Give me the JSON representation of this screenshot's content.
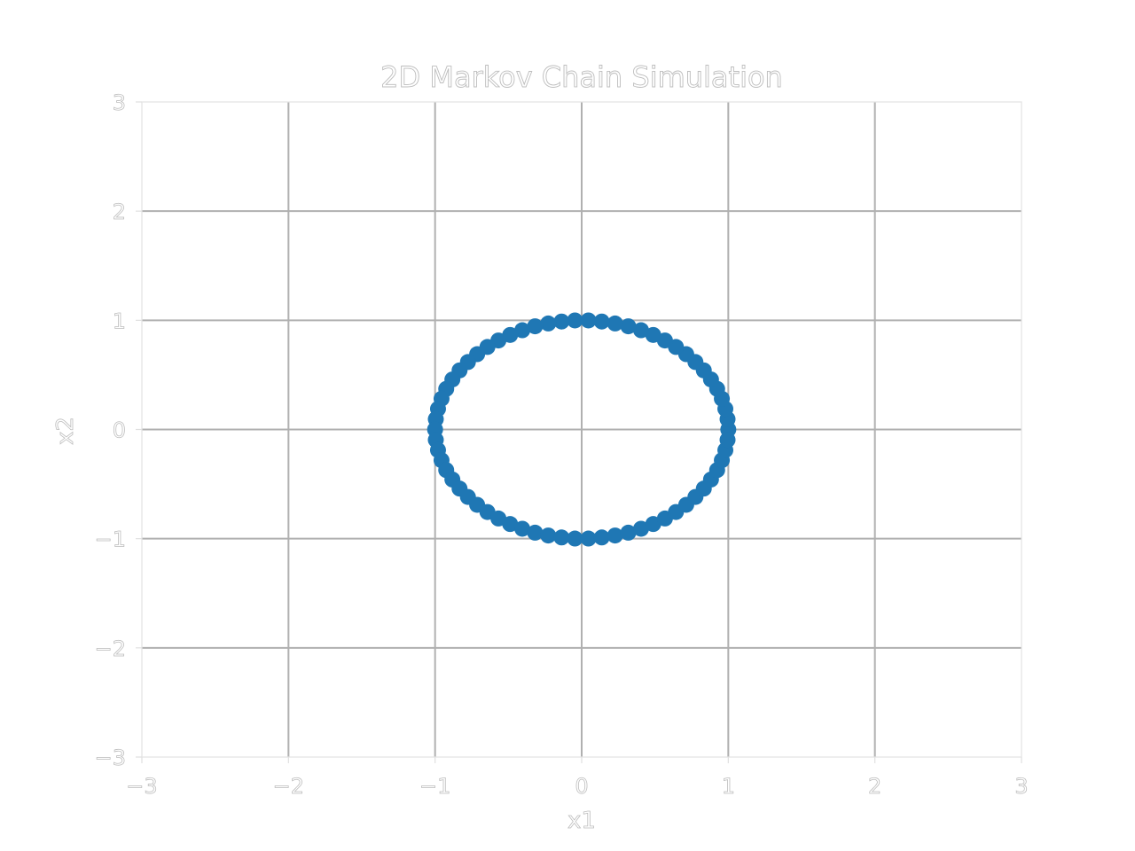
{
  "chart_data": {
    "type": "scatter",
    "title": "2D Markov Chain Simulation",
    "xlabel": "x1",
    "ylabel": "x2",
    "xlim": [
      -3,
      3
    ],
    "ylim": [
      -3,
      3
    ],
    "xticks": [
      -3,
      -2,
      -1,
      0,
      1,
      2,
      3
    ],
    "yticks": [
      -3,
      -2,
      -1,
      0,
      1,
      2,
      3
    ],
    "xtick_labels": [
      "−3",
      "−2",
      "−1",
      "0",
      "1",
      "2",
      "3"
    ],
    "ytick_labels": [
      "−3",
      "−2",
      "−1",
      "0",
      "1",
      "2",
      "3"
    ],
    "grid": true,
    "series": [
      {
        "color": "#1f77b4",
        "x": [
          1.0,
          0.995,
          0.98,
          0.956,
          0.924,
          0.882,
          0.833,
          0.776,
          0.713,
          0.643,
          0.568,
          0.488,
          0.405,
          0.318,
          0.228,
          0.137,
          0.046,
          -0.046,
          -0.137,
          -0.228,
          -0.318,
          -0.405,
          -0.488,
          -0.568,
          -0.643,
          -0.713,
          -0.776,
          -0.833,
          -0.882,
          -0.924,
          -0.956,
          -0.98,
          -0.995,
          -1.0,
          -0.995,
          -0.98,
          -0.956,
          -0.924,
          -0.882,
          -0.833,
          -0.776,
          -0.713,
          -0.643,
          -0.568,
          -0.488,
          -0.405,
          -0.318,
          -0.228,
          -0.137,
          -0.046,
          0.046,
          0.137,
          0.228,
          0.318,
          0.405,
          0.488,
          0.568,
          0.643,
          0.713,
          0.776,
          0.833,
          0.882,
          0.924,
          0.956,
          0.98,
          0.995
        ],
        "y": [
          0.0,
          0.095,
          0.189,
          0.282,
          0.372,
          0.458,
          0.541,
          0.618,
          0.69,
          0.756,
          0.815,
          0.866,
          0.909,
          0.945,
          0.971,
          0.989,
          0.999,
          0.999,
          0.989,
          0.971,
          0.945,
          0.909,
          0.866,
          0.815,
          0.756,
          0.69,
          0.618,
          0.541,
          0.458,
          0.372,
          0.282,
          0.189,
          0.095,
          0.0,
          -0.095,
          -0.189,
          -0.282,
          -0.372,
          -0.458,
          -0.541,
          -0.618,
          -0.69,
          -0.756,
          -0.815,
          -0.866,
          -0.909,
          -0.945,
          -0.971,
          -0.989,
          -0.999,
          -0.999,
          -0.989,
          -0.971,
          -0.945,
          -0.909,
          -0.866,
          -0.815,
          -0.756,
          -0.69,
          -0.618,
          -0.541,
          -0.458,
          -0.372,
          -0.282,
          -0.189,
          -0.095
        ]
      }
    ]
  }
}
